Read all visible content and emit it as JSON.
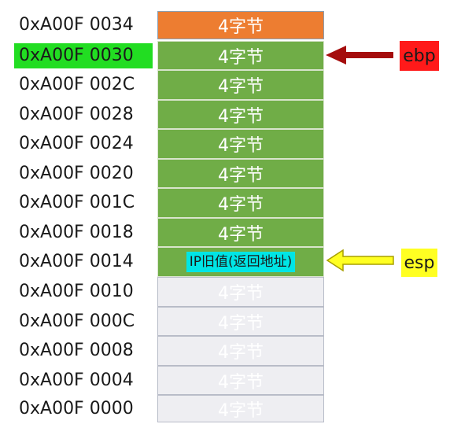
{
  "stack": [
    {
      "address": "0xA00F 0034",
      "label": "4字节",
      "fill": "orange"
    },
    {
      "address": "0xA00F 0030",
      "label": "4字节",
      "fill": "green",
      "address_highlight": "#22dd22"
    },
    {
      "address": "0xA00F 002C",
      "label": "4字节",
      "fill": "green"
    },
    {
      "address": "0xA00F 0028",
      "label": "4字节",
      "fill": "green"
    },
    {
      "address": "0xA00F 0024",
      "label": "4字节",
      "fill": "green"
    },
    {
      "address": "0xA00F 0020",
      "label": "4字节",
      "fill": "green"
    },
    {
      "address": "0xA00F 001C",
      "label": "4字节",
      "fill": "green"
    },
    {
      "address": "0xA00F 0018",
      "label": "4字节",
      "fill": "green"
    },
    {
      "address": "0xA00F 0014",
      "label": "IP旧值(返回地址)",
      "fill": "cyan-on-green"
    },
    {
      "address": "0xA00F 0010",
      "label": "4字节",
      "fill": "gray"
    },
    {
      "address": "0xA00F 000C",
      "label": "4字节",
      "fill": "gray"
    },
    {
      "address": "0xA00F 0008",
      "label": "4字节",
      "fill": "gray"
    },
    {
      "address": "0xA00F 0004",
      "label": "4字节",
      "fill": "gray"
    },
    {
      "address": "0xA00F 0000",
      "label": "4字节",
      "fill": "gray"
    }
  ],
  "pointers": {
    "ebp": {
      "label": "ebp",
      "row": 1,
      "color": "#ff1a1a",
      "arrow_color": "#a50d0d"
    },
    "esp": {
      "label": "esp",
      "row": 8,
      "color": "#ffff22",
      "arrow_color": "#ffff22"
    }
  },
  "colors": {
    "orange": "#ed7d31",
    "green": "#70ad47",
    "gray": "#eeeef2",
    "cyan": "#00e5e5"
  }
}
